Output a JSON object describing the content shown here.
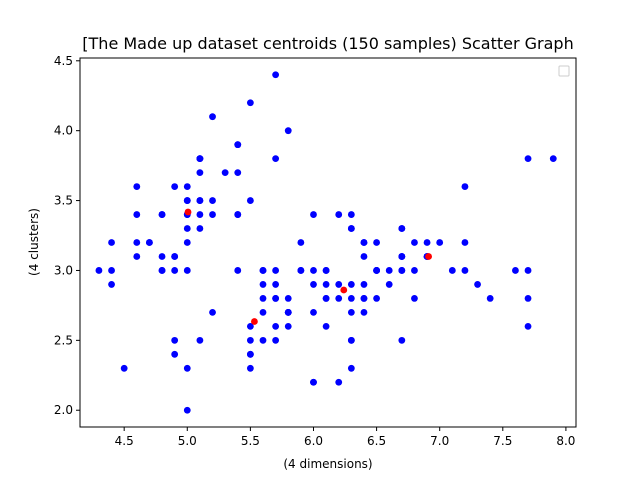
{
  "chart_data": {
    "type": "scatter",
    "title": "[The Made up dataset centroids (150 samples) Scatter Graph",
    "xlabel": "(4 dimensions)",
    "ylabel": "(4 clusters)",
    "xlim": [
      4.15,
      8.08
    ],
    "ylim": [
      1.88,
      4.52
    ],
    "xticks": [
      "4.5",
      "5.0",
      "5.5",
      "6.0",
      "6.5",
      "7.0",
      "7.5",
      "8.0"
    ],
    "yticks": [
      "2.0",
      "2.5",
      "3.0",
      "3.5",
      "4.0",
      "4.5"
    ],
    "grid": false,
    "legend_position": "top-right",
    "series": [
      {
        "color": "#0000ff",
        "marker": "circle",
        "points": [
          [
            5.1,
            3.5
          ],
          [
            4.9,
            3.0
          ],
          [
            4.7,
            3.2
          ],
          [
            4.6,
            3.1
          ],
          [
            5.0,
            3.6
          ],
          [
            5.4,
            3.9
          ],
          [
            4.6,
            3.4
          ],
          [
            5.0,
            3.4
          ],
          [
            4.4,
            2.9
          ],
          [
            4.9,
            3.1
          ],
          [
            5.4,
            3.7
          ],
          [
            4.8,
            3.4
          ],
          [
            4.8,
            3.0
          ],
          [
            4.3,
            3.0
          ],
          [
            5.8,
            4.0
          ],
          [
            5.7,
            4.4
          ],
          [
            5.4,
            3.9
          ],
          [
            5.1,
            3.5
          ],
          [
            5.7,
            3.8
          ],
          [
            5.1,
            3.8
          ],
          [
            5.4,
            3.4
          ],
          [
            5.1,
            3.7
          ],
          [
            4.6,
            3.6
          ],
          [
            5.1,
            3.3
          ],
          [
            4.8,
            3.4
          ],
          [
            5.0,
            3.0
          ],
          [
            5.0,
            3.4
          ],
          [
            5.2,
            3.5
          ],
          [
            5.2,
            3.4
          ],
          [
            4.7,
            3.2
          ],
          [
            4.8,
            3.1
          ],
          [
            5.4,
            3.4
          ],
          [
            5.2,
            4.1
          ],
          [
            5.5,
            4.2
          ],
          [
            4.9,
            3.1
          ],
          [
            5.0,
            3.2
          ],
          [
            5.5,
            3.5
          ],
          [
            4.9,
            3.6
          ],
          [
            4.4,
            3.0
          ],
          [
            5.1,
            3.4
          ],
          [
            5.0,
            3.5
          ],
          [
            4.5,
            2.3
          ],
          [
            4.4,
            3.2
          ],
          [
            5.0,
            3.5
          ],
          [
            5.1,
            3.8
          ],
          [
            4.8,
            3.0
          ],
          [
            5.1,
            3.8
          ],
          [
            4.6,
            3.2
          ],
          [
            5.3,
            3.7
          ],
          [
            5.0,
            3.3
          ],
          [
            7.0,
            3.2
          ],
          [
            6.4,
            3.2
          ],
          [
            6.9,
            3.1
          ],
          [
            5.5,
            2.3
          ],
          [
            6.5,
            2.8
          ],
          [
            5.7,
            2.8
          ],
          [
            6.3,
            3.3
          ],
          [
            4.9,
            2.4
          ],
          [
            6.6,
            2.9
          ],
          [
            5.2,
            2.7
          ],
          [
            5.0,
            2.0
          ],
          [
            5.9,
            3.0
          ],
          [
            6.0,
            2.2
          ],
          [
            6.1,
            2.9
          ],
          [
            5.6,
            2.9
          ],
          [
            6.7,
            3.1
          ],
          [
            5.6,
            3.0
          ],
          [
            5.8,
            2.7
          ],
          [
            6.2,
            2.2
          ],
          [
            5.6,
            2.5
          ],
          [
            5.9,
            3.2
          ],
          [
            6.1,
            2.8
          ],
          [
            6.3,
            2.5
          ],
          [
            6.1,
            2.8
          ],
          [
            6.4,
            2.9
          ],
          [
            6.6,
            3.0
          ],
          [
            6.8,
            2.8
          ],
          [
            6.7,
            3.0
          ],
          [
            6.0,
            2.9
          ],
          [
            5.7,
            2.6
          ],
          [
            5.5,
            2.4
          ],
          [
            5.5,
            2.4
          ],
          [
            5.8,
            2.7
          ],
          [
            6.0,
            2.7
          ],
          [
            5.4,
            3.0
          ],
          [
            6.0,
            3.4
          ],
          [
            6.7,
            3.1
          ],
          [
            6.3,
            2.3
          ],
          [
            5.6,
            3.0
          ],
          [
            5.5,
            2.5
          ],
          [
            5.5,
            2.6
          ],
          [
            6.1,
            3.0
          ],
          [
            5.8,
            2.6
          ],
          [
            5.0,
            2.3
          ],
          [
            5.6,
            2.7
          ],
          [
            5.7,
            3.0
          ],
          [
            5.7,
            2.9
          ],
          [
            6.2,
            2.9
          ],
          [
            5.1,
            2.5
          ],
          [
            5.7,
            2.8
          ],
          [
            6.3,
            3.3
          ],
          [
            5.8,
            2.7
          ],
          [
            7.1,
            3.0
          ],
          [
            6.3,
            2.9
          ],
          [
            6.5,
            3.0
          ],
          [
            7.6,
            3.0
          ],
          [
            4.9,
            2.5
          ],
          [
            7.3,
            2.9
          ],
          [
            6.7,
            2.5
          ],
          [
            7.2,
            3.6
          ],
          [
            6.5,
            3.2
          ],
          [
            6.4,
            2.7
          ],
          [
            6.8,
            3.0
          ],
          [
            5.7,
            2.5
          ],
          [
            5.8,
            2.8
          ],
          [
            6.4,
            3.2
          ],
          [
            6.5,
            3.0
          ],
          [
            7.7,
            3.8
          ],
          [
            7.7,
            2.6
          ],
          [
            6.0,
            2.2
          ],
          [
            6.9,
            3.2
          ],
          [
            5.6,
            2.8
          ],
          [
            7.7,
            2.8
          ],
          [
            6.3,
            2.7
          ],
          [
            6.7,
            3.3
          ],
          [
            7.2,
            3.2
          ],
          [
            6.2,
            2.8
          ],
          [
            6.1,
            3.0
          ],
          [
            6.4,
            2.8
          ],
          [
            7.2,
            3.0
          ],
          [
            7.4,
            2.8
          ],
          [
            7.9,
            3.8
          ],
          [
            6.4,
            2.8
          ],
          [
            6.3,
            2.8
          ],
          [
            6.1,
            2.6
          ],
          [
            7.7,
            3.0
          ],
          [
            6.3,
            3.4
          ],
          [
            6.4,
            3.1
          ],
          [
            6.0,
            3.0
          ],
          [
            6.9,
            3.1
          ],
          [
            6.7,
            3.1
          ],
          [
            6.9,
            3.1
          ],
          [
            5.8,
            2.7
          ],
          [
            6.8,
            3.2
          ],
          [
            6.7,
            3.3
          ],
          [
            6.7,
            3.0
          ],
          [
            6.3,
            2.5
          ],
          [
            6.5,
            3.0
          ],
          [
            6.2,
            3.4
          ],
          [
            5.9,
            3.0
          ]
        ]
      },
      {
        "color": "#ff0000",
        "marker": "circle",
        "points": [
          [
            5.006,
            3.418
          ],
          [
            5.532,
            2.635
          ],
          [
            6.24,
            2.86
          ],
          [
            6.912,
            3.1
          ]
        ]
      }
    ]
  }
}
